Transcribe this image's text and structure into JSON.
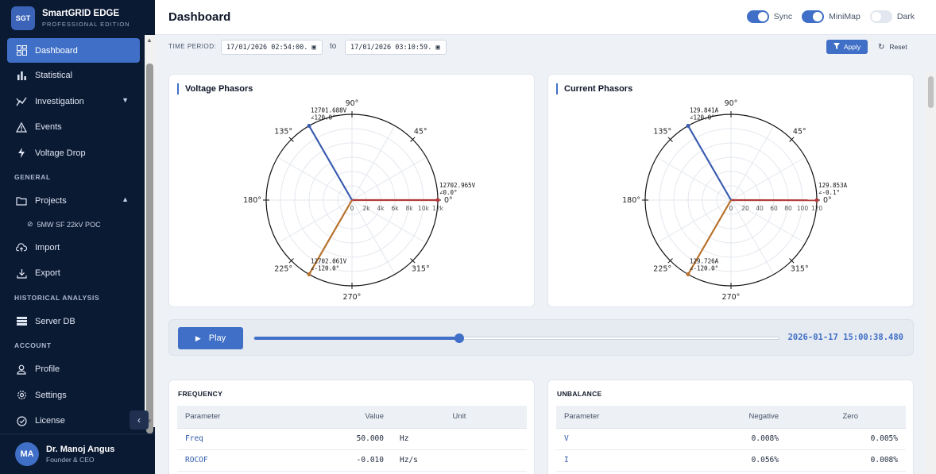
{
  "brand": {
    "logo": "SGT",
    "name": "SmartGRID EDGE",
    "edition": "PROFESSIONAL EDITION"
  },
  "sidebar": {
    "items": [
      {
        "label": "Dashboard",
        "icon": "grid-icon",
        "active": true
      },
      {
        "label": "Statistical",
        "icon": "bar-chart-icon"
      },
      {
        "label": "Investigation",
        "icon": "trend-icon",
        "chevron": "down"
      },
      {
        "label": "Events",
        "icon": "warning-icon"
      },
      {
        "label": "Voltage Drop",
        "icon": "bolt-icon"
      }
    ],
    "general_title": "GENERAL",
    "general": [
      {
        "label": "Projects",
        "icon": "folder-icon",
        "chevron": "up"
      },
      {
        "label": "5MW SF 22kV POC",
        "icon": "check-circle-icon",
        "sub": true
      },
      {
        "label": "Import",
        "icon": "cloud-upload-icon"
      },
      {
        "label": "Export",
        "icon": "download-icon"
      }
    ],
    "historical_title": "HISTORICAL ANALYSIS",
    "historical": [
      {
        "label": "Server DB",
        "icon": "server-icon"
      }
    ],
    "account_title": "ACCOUNT",
    "account": [
      {
        "label": "Profile",
        "icon": "user-icon"
      },
      {
        "label": "Settings",
        "icon": "gear-icon"
      },
      {
        "label": "License",
        "icon": "badge-icon"
      }
    ]
  },
  "user": {
    "initials": "MA",
    "name": "Dr. Manoj Angus",
    "role": "Founder & CEO"
  },
  "header": {
    "title": "Dashboard",
    "toggles": [
      {
        "label": "Sync",
        "on": true
      },
      {
        "label": "MiniMap",
        "on": true
      },
      {
        "label": "Dark",
        "on": false
      }
    ]
  },
  "filter": {
    "label": "TIME PERIOD:",
    "from": "17/01/2026 02:54:00.",
    "to_label": "to",
    "to": "17/01/2026 03:10:59.",
    "apply": "Apply",
    "reset": "Reset"
  },
  "colors": {
    "accent": "#3f6fc6",
    "phase_a": "#b33b3b",
    "phase_b": "#b8722e",
    "phase_c": "#3b5db0",
    "sidebar": "#0b1a33"
  },
  "voltage": {
    "title": "Voltage Phasors",
    "radial_ticks": [
      "0",
      "2k",
      "4k",
      "6k",
      "8k",
      "10k",
      "12k"
    ],
    "angle_labels": [
      "0°",
      "45°",
      "90°",
      "135°",
      "180°",
      "225°",
      "270°",
      "315°"
    ],
    "max": 12000,
    "phasors": [
      {
        "mag": 12702.965,
        "angle": 0.0,
        "label1": "12702.965V",
        "label2": "∠0.0°",
        "color": "#b33b3b"
      },
      {
        "mag": 12701.688,
        "angle": 120.0,
        "label1": "12701.688V",
        "label2": "∠120.0°",
        "color": "#3b5db0"
      },
      {
        "mag": 12702.061,
        "angle": -120.0,
        "label1": "12702.061V",
        "label2": "∠-120.0°",
        "color": "#b8722e"
      }
    ]
  },
  "current": {
    "title": "Current Phasors",
    "radial_ticks": [
      "0",
      "20",
      "40",
      "60",
      "80",
      "100",
      "120"
    ],
    "angle_labels": [
      "0°",
      "45°",
      "90°",
      "135°",
      "180°",
      "225°",
      "270°",
      "315°"
    ],
    "max": 120,
    "phasors": [
      {
        "mag": 129.853,
        "angle": -0.1,
        "label1": "129.853A",
        "label2": "∠-0.1°",
        "color": "#b33b3b"
      },
      {
        "mag": 129.841,
        "angle": 120.0,
        "label1": "129.841A",
        "label2": "∠120.0°",
        "color": "#3b5db0"
      },
      {
        "mag": 129.726,
        "angle": -120.0,
        "label1": "129.726A",
        "label2": "∠-120.0°",
        "color": "#b8722e"
      }
    ]
  },
  "player": {
    "play": "Play",
    "progress": 0.39,
    "time": "2026-01-17 15:00:38.480"
  },
  "frequency": {
    "title": "FREQUENCY",
    "headers": [
      "Parameter",
      "Value",
      "Unit"
    ],
    "rows": [
      {
        "param": "Freq",
        "value": "50.000",
        "unit": "Hz"
      },
      {
        "param": "ROCOF",
        "value": "-0.010",
        "unit": "Hz/s"
      }
    ]
  },
  "unbalance": {
    "title": "UNBALANCE",
    "headers": [
      "Parameter",
      "Negative",
      "Zero"
    ],
    "rows": [
      {
        "param": "V",
        "negative": "0.008%",
        "zero": "0.005%"
      },
      {
        "param": "I",
        "negative": "0.056%",
        "zero": "0.008%"
      }
    ]
  }
}
